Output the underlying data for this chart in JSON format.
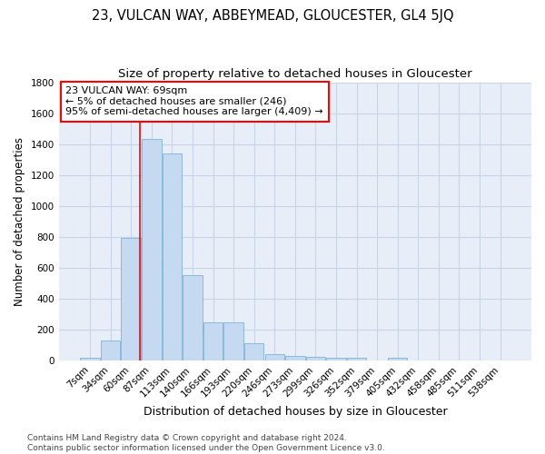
{
  "title": "23, VULCAN WAY, ABBEYMEAD, GLOUCESTER, GL4 5JQ",
  "subtitle": "Size of property relative to detached houses in Gloucester",
  "xlabel": "Distribution of detached houses by size in Gloucester",
  "ylabel": "Number of detached properties",
  "categories": [
    "7sqm",
    "34sqm",
    "60sqm",
    "87sqm",
    "113sqm",
    "140sqm",
    "166sqm",
    "193sqm",
    "220sqm",
    "246sqm",
    "273sqm",
    "299sqm",
    "326sqm",
    "352sqm",
    "379sqm",
    "405sqm",
    "432sqm",
    "458sqm",
    "485sqm",
    "511sqm",
    "538sqm"
  ],
  "values": [
    15,
    130,
    790,
    1435,
    1340,
    550,
    245,
    245,
    110,
    40,
    28,
    22,
    15,
    15,
    0,
    20,
    0,
    0,
    0,
    0,
    0
  ],
  "bar_color": "#c5d9f0",
  "bar_edge_color": "#7eb3d8",
  "vline_color": "red",
  "vline_x": 2.45,
  "annotation_text": "23 VULCAN WAY: 69sqm\n← 5% of detached houses are smaller (246)\n95% of semi-detached houses are larger (4,409) →",
  "annotation_box_color": "white",
  "annotation_box_edge_color": "red",
  "ylim": [
    0,
    1800
  ],
  "yticks": [
    0,
    200,
    400,
    600,
    800,
    1000,
    1200,
    1400,
    1600,
    1800
  ],
  "bg_color": "#e8eef8",
  "grid_color": "#c8d4e8",
  "footer": "Contains HM Land Registry data © Crown copyright and database right 2024.\nContains public sector information licensed under the Open Government Licence v3.0.",
  "title_fontsize": 10.5,
  "subtitle_fontsize": 9.5,
  "xlabel_fontsize": 9,
  "ylabel_fontsize": 8.5,
  "tick_fontsize": 7.5,
  "annotation_fontsize": 8,
  "footer_fontsize": 6.5
}
